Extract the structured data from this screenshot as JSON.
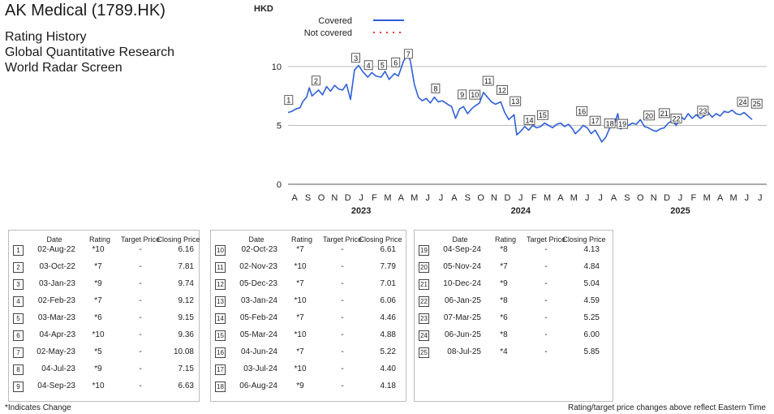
{
  "header": {
    "title": "AK Medical (1789.HK)",
    "lines": [
      "Rating History",
      "Global Quantitative Research",
      "World Radar Screen"
    ]
  },
  "chart_data": {
    "type": "line",
    "ylabel": "HKD",
    "ylim": [
      0,
      12
    ],
    "yticks": [
      0,
      5,
      10
    ],
    "grid": "horizontal",
    "legend": [
      {
        "label": "Covered",
        "style": "solid",
        "color": "#2f5fd8"
      },
      {
        "label": "Not covered",
        "style": "dotted",
        "color": "#e53935"
      }
    ],
    "month_labels": [
      "A",
      "S",
      "O",
      "N",
      "D",
      "J",
      "F",
      "M",
      "A",
      "M",
      "J",
      "J",
      "A",
      "S",
      "O",
      "N",
      "D",
      "J",
      "F",
      "M",
      "A",
      "M",
      "J",
      "J",
      "A",
      "S",
      "O",
      "N",
      "D",
      "J",
      "F",
      "M",
      "A",
      "M",
      "J",
      "J"
    ],
    "year_labels": [
      {
        "label": "2023",
        "month_index": 5
      },
      {
        "label": "2024",
        "month_index": 17
      },
      {
        "label": "2025",
        "month_index": 29
      }
    ],
    "series": [
      {
        "style": "solid",
        "color": "#2f5fd8",
        "points": [
          [
            0,
            6.1
          ],
          [
            0.3,
            6.2
          ],
          [
            0.6,
            6.4
          ],
          [
            0.9,
            6.5
          ],
          [
            1.1,
            7.0
          ],
          [
            1.4,
            7.4
          ],
          [
            1.6,
            8.2
          ],
          [
            1.8,
            7.5
          ],
          [
            2.0,
            7.7
          ],
          [
            2.3,
            8.0
          ],
          [
            2.6,
            7.6
          ],
          [
            2.9,
            8.3
          ],
          [
            3.2,
            7.9
          ],
          [
            3.5,
            8.4
          ],
          [
            3.8,
            8.1
          ],
          [
            4.1,
            8.0
          ],
          [
            4.4,
            8.5
          ],
          [
            4.7,
            7.2
          ],
          [
            5.0,
            9.7
          ],
          [
            5.3,
            10.1
          ],
          [
            5.6,
            9.6
          ],
          [
            6.0,
            9.1
          ],
          [
            6.3,
            9.5
          ],
          [
            6.6,
            9.2
          ],
          [
            7.0,
            9.1
          ],
          [
            7.3,
            9.6
          ],
          [
            7.6,
            8.9
          ],
          [
            8.0,
            9.4
          ],
          [
            8.3,
            9.2
          ],
          [
            8.7,
            10.5
          ],
          [
            9.0,
            11.0
          ],
          [
            9.2,
            10.5
          ],
          [
            9.5,
            8.5
          ],
          [
            9.8,
            7.4
          ],
          [
            10.1,
            7.1
          ],
          [
            10.4,
            7.3
          ],
          [
            10.7,
            6.9
          ],
          [
            11.0,
            7.4
          ],
          [
            11.3,
            7.0
          ],
          [
            11.6,
            7.1
          ],
          [
            12.0,
            6.8
          ],
          [
            12.3,
            6.6
          ],
          [
            12.6,
            5.6
          ],
          [
            12.9,
            6.4
          ],
          [
            13.2,
            6.6
          ],
          [
            13.5,
            6.0
          ],
          [
            13.8,
            6.4
          ],
          [
            14.0,
            6.6
          ],
          [
            14.4,
            6.9
          ],
          [
            14.7,
            7.8
          ],
          [
            15.0,
            7.4
          ],
          [
            15.3,
            7.0
          ],
          [
            15.6,
            6.8
          ],
          [
            16.0,
            7.0
          ],
          [
            16.3,
            6.1
          ],
          [
            16.6,
            5.5
          ],
          [
            17.0,
            5.9
          ],
          [
            17.2,
            4.2
          ],
          [
            17.5,
            4.5
          ],
          [
            17.8,
            4.9
          ],
          [
            18.1,
            4.6
          ],
          [
            18.4,
            5.0
          ],
          [
            18.7,
            4.8
          ],
          [
            19.0,
            4.9
          ],
          [
            19.3,
            5.2
          ],
          [
            19.6,
            5.0
          ],
          [
            19.9,
            4.8
          ],
          [
            20.2,
            5.1
          ],
          [
            20.5,
            5.2
          ],
          [
            20.8,
            4.9
          ],
          [
            21.1,
            5.1
          ],
          [
            21.4,
            4.7
          ],
          [
            21.6,
            4.3
          ],
          [
            21.9,
            4.6
          ],
          [
            22.2,
            5.0
          ],
          [
            22.5,
            4.8
          ],
          [
            22.8,
            4.3
          ],
          [
            23.1,
            4.6
          ],
          [
            23.4,
            4.0
          ],
          [
            23.6,
            3.6
          ],
          [
            23.9,
            4.0
          ],
          [
            24.2,
            4.8
          ],
          [
            24.5,
            4.9
          ],
          [
            24.8,
            6.0
          ],
          [
            25.0,
            4.7
          ],
          [
            25.3,
            4.9
          ],
          [
            25.6,
            5.0
          ],
          [
            25.9,
            5.2
          ],
          [
            26.2,
            5.1
          ],
          [
            26.5,
            5.5
          ],
          [
            26.8,
            4.9
          ],
          [
            27.1,
            4.8
          ],
          [
            27.4,
            4.6
          ],
          [
            27.7,
            4.5
          ],
          [
            28.0,
            4.7
          ],
          [
            28.3,
            4.8
          ],
          [
            28.6,
            5.2
          ],
          [
            28.9,
            5.4
          ],
          [
            29.2,
            5.0
          ],
          [
            29.5,
            5.8
          ],
          [
            29.8,
            5.5
          ],
          [
            30.1,
            6.0
          ],
          [
            30.4,
            5.6
          ],
          [
            30.7,
            5.9
          ],
          [
            31.0,
            5.6
          ],
          [
            31.3,
            5.8
          ],
          [
            31.6,
            6.1
          ],
          [
            31.9,
            5.7
          ],
          [
            32.2,
            6.0
          ],
          [
            32.5,
            5.8
          ],
          [
            32.8,
            6.2
          ],
          [
            33.1,
            6.1
          ],
          [
            33.4,
            6.3
          ],
          [
            33.7,
            6.0
          ],
          [
            34.0,
            5.9
          ],
          [
            34.3,
            6.1
          ],
          [
            34.6,
            5.8
          ],
          [
            34.9,
            5.5
          ]
        ]
      }
    ],
    "markers": [
      {
        "n": "1",
        "x": 0.05,
        "y": 6.16
      },
      {
        "n": "2",
        "x": 2.1,
        "y": 7.81
      },
      {
        "n": "3",
        "x": 5.1,
        "y": 9.74
      },
      {
        "n": "4",
        "x": 6.05,
        "y": 9.12
      },
      {
        "n": "5",
        "x": 7.1,
        "y": 9.15
      },
      {
        "n": "6",
        "x": 8.1,
        "y": 9.36
      },
      {
        "n": "7",
        "x": 9.05,
        "y": 10.08
      },
      {
        "n": "8",
        "x": 11.1,
        "y": 7.15
      },
      {
        "n": "9",
        "x": 13.1,
        "y": 6.63
      },
      {
        "n": "10",
        "x": 14.05,
        "y": 6.61
      },
      {
        "n": "11",
        "x": 15.05,
        "y": 7.79
      },
      {
        "n": "12",
        "x": 16.1,
        "y": 7.01
      },
      {
        "n": "13",
        "x": 17.1,
        "y": 6.06
      },
      {
        "n": "14",
        "x": 18.15,
        "y": 4.46
      },
      {
        "n": "15",
        "x": 19.15,
        "y": 4.88
      },
      {
        "n": "16",
        "x": 22.1,
        "y": 5.22
      },
      {
        "n": "17",
        "x": 23.1,
        "y": 4.4
      },
      {
        "n": "18",
        "x": 24.2,
        "y": 4.18
      },
      {
        "n": "19",
        "x": 25.15,
        "y": 4.13
      },
      {
        "n": "20",
        "x": 27.15,
        "y": 4.84
      },
      {
        "n": "21",
        "x": 28.3,
        "y": 5.04
      },
      {
        "n": "22",
        "x": 29.2,
        "y": 4.59
      },
      {
        "n": "23",
        "x": 31.2,
        "y": 5.25
      },
      {
        "n": "24",
        "x": 34.2,
        "y": 6.0
      },
      {
        "n": "25",
        "x": 35.25,
        "y": 5.85
      }
    ]
  },
  "table_headers": {
    "date": "Date",
    "rating": "Rating",
    "target": "Target Price",
    "closing": "Closing Price"
  },
  "tables": [
    {
      "rows": [
        {
          "n": "1",
          "date": "02-Aug-22",
          "rating": "*10",
          "target": "-",
          "closing": "6.16"
        },
        {
          "n": "2",
          "date": "03-Oct-22",
          "rating": "*7",
          "target": "-",
          "closing": "7.81"
        },
        {
          "n": "3",
          "date": "03-Jan-23",
          "rating": "*9",
          "target": "-",
          "closing": "9.74"
        },
        {
          "n": "4",
          "date": "02-Feb-23",
          "rating": "*7",
          "target": "-",
          "closing": "9.12"
        },
        {
          "n": "5",
          "date": "03-Mar-23",
          "rating": "*6",
          "target": "-",
          "closing": "9.15"
        },
        {
          "n": "6",
          "date": "04-Apr-23",
          "rating": "*10",
          "target": "-",
          "closing": "9.36"
        },
        {
          "n": "7",
          "date": "02-May-23",
          "rating": "*5",
          "target": "-",
          "closing": "10.08"
        },
        {
          "n": "8",
          "date": "04-Jul-23",
          "rating": "*9",
          "target": "-",
          "closing": "7.15"
        },
        {
          "n": "9",
          "date": "04-Sep-23",
          "rating": "*10",
          "target": "-",
          "closing": "6.63"
        }
      ]
    },
    {
      "rows": [
        {
          "n": "10",
          "date": "02-Oct-23",
          "rating": "*7",
          "target": "-",
          "closing": "6.61"
        },
        {
          "n": "11",
          "date": "02-Nov-23",
          "rating": "*10",
          "target": "-",
          "closing": "7.79"
        },
        {
          "n": "12",
          "date": "05-Dec-23",
          "rating": "*7",
          "target": "-",
          "closing": "7.01"
        },
        {
          "n": "13",
          "date": "03-Jan-24",
          "rating": "*10",
          "target": "-",
          "closing": "6.06"
        },
        {
          "n": "14",
          "date": "05-Feb-24",
          "rating": "*7",
          "target": "-",
          "closing": "4.46"
        },
        {
          "n": "15",
          "date": "05-Mar-24",
          "rating": "*10",
          "target": "-",
          "closing": "4.88"
        },
        {
          "n": "16",
          "date": "04-Jun-24",
          "rating": "*7",
          "target": "-",
          "closing": "5.22"
        },
        {
          "n": "17",
          "date": "03-Jul-24",
          "rating": "*10",
          "target": "-",
          "closing": "4.40"
        },
        {
          "n": "18",
          "date": "06-Aug-24",
          "rating": "*9",
          "target": "-",
          "closing": "4.18"
        }
      ]
    },
    {
      "rows": [
        {
          "n": "19",
          "date": "04-Sep-24",
          "rating": "*8",
          "target": "-",
          "closing": "4.13"
        },
        {
          "n": "20",
          "date": "05-Nov-24",
          "rating": "*7",
          "target": "-",
          "closing": "4.84"
        },
        {
          "n": "21",
          "date": "10-Dec-24",
          "rating": "*9",
          "target": "-",
          "closing": "5.04"
        },
        {
          "n": "22",
          "date": "06-Jan-25",
          "rating": "*8",
          "target": "-",
          "closing": "4.59"
        },
        {
          "n": "23",
          "date": "07-Mar-25",
          "rating": "*6",
          "target": "-",
          "closing": "5.25"
        },
        {
          "n": "24",
          "date": "06-Jun-25",
          "rating": "*8",
          "target": "-",
          "closing": "6.00"
        },
        {
          "n": "25",
          "date": "08-Jul-25",
          "rating": "*4",
          "target": "-",
          "closing": "5.85"
        }
      ]
    }
  ],
  "footer": {
    "left": "*Indicates Change",
    "right": "Rating/target price changes above reflect Eastern Time"
  }
}
